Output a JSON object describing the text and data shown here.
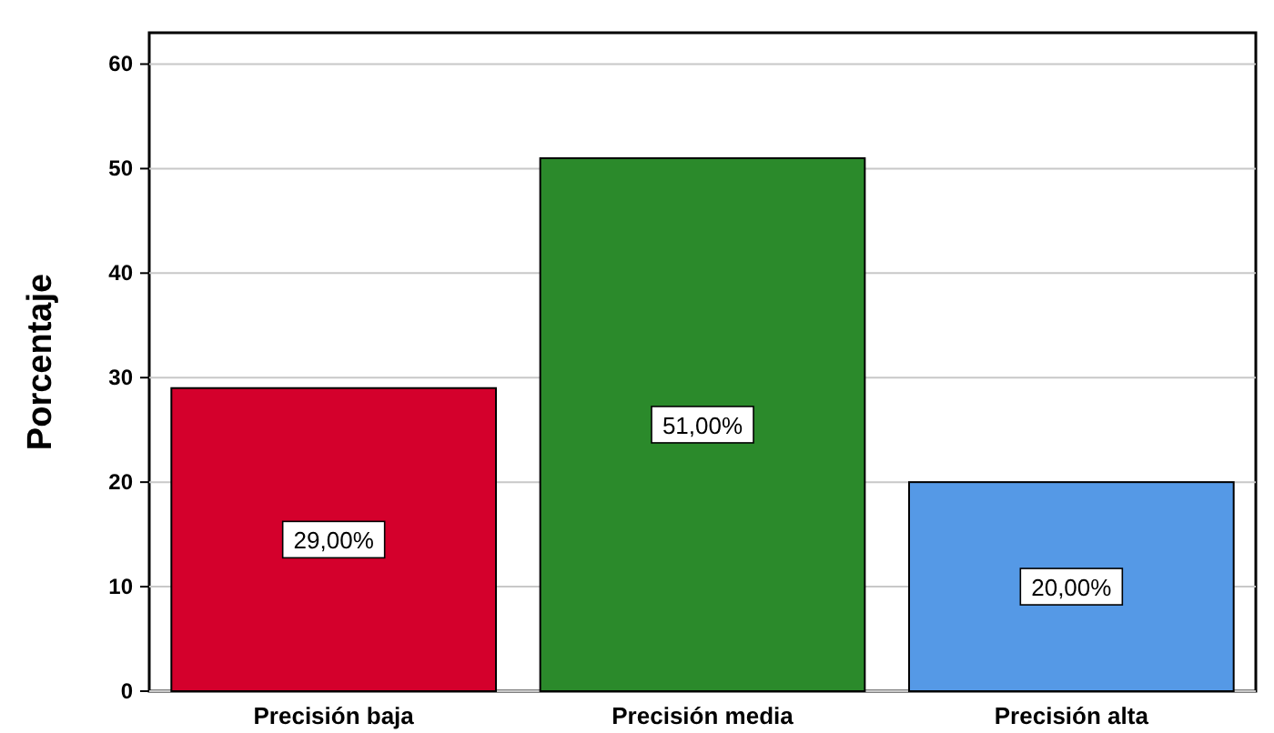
{
  "chart_data": {
    "type": "bar",
    "ylabel": "Porcentaje",
    "categories": [
      "Precisión baja",
      "Precisión media",
      "Precisión alta"
    ],
    "values": [
      29,
      51,
      20
    ],
    "colors": [
      "#d4002c",
      "#2b8a2b",
      "#5599e6"
    ],
    "value_labels": [
      "29,00%",
      "51,00%",
      "20,00%"
    ],
    "ylim": [
      0,
      63
    ],
    "yticks": [
      0,
      10,
      20,
      30,
      40,
      50,
      60
    ],
    "grid": "y"
  }
}
